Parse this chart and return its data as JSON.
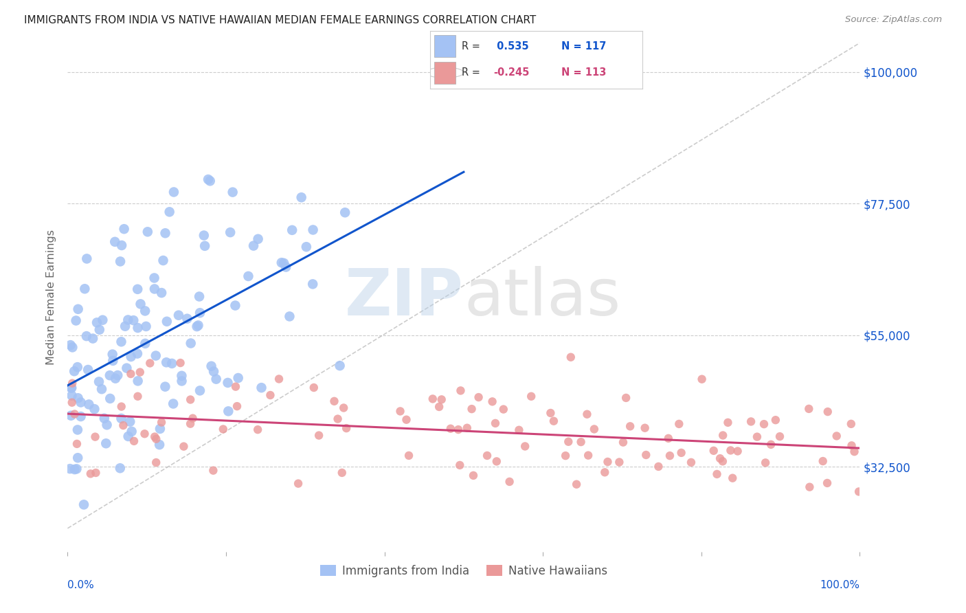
{
  "title": "IMMIGRANTS FROM INDIA VS NATIVE HAWAIIAN MEDIAN FEMALE EARNINGS CORRELATION CHART",
  "source": "Source: ZipAtlas.com",
  "ylabel": "Median Female Earnings",
  "yticks": [
    32500,
    55000,
    77500,
    100000
  ],
  "ytick_labels": [
    "$32,500",
    "$55,000",
    "$77,500",
    "$100,000"
  ],
  "ymin": 18000,
  "ymax": 105000,
  "xmin": 0.0,
  "xmax": 1.0,
  "india_R": 0.535,
  "india_N": 117,
  "hawaii_R": -0.245,
  "hawaii_N": 113,
  "india_color": "#a4c2f4",
  "hawaii_color": "#ea9999",
  "india_line_color": "#1155cc",
  "hawaii_line_color": "#cc4477",
  "dashed_line_color": "#aaaaaa",
  "title_color": "#222222",
  "ytick_color": "#1155cc",
  "xtick_color": "#1155cc",
  "background_color": "#ffffff",
  "legend_r_color": "#222222",
  "legend_val_india_color": "#1155cc",
  "legend_val_hawaii_color": "#cc4477"
}
